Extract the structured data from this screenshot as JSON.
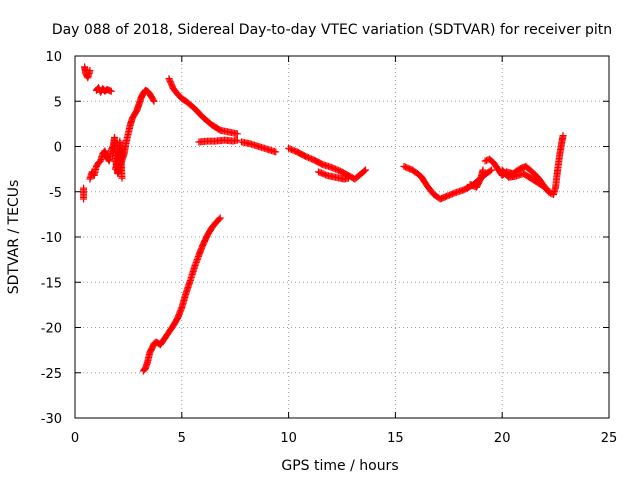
{
  "chart_data": {
    "type": "scatter",
    "title": "Day 088 of 2018, Sidereal Day-to-day VTEC variation (SDTVAR) for receiver pitn",
    "xlabel": "GPS time / hours",
    "ylabel": "SDTVAR / TECUs",
    "xlim": [
      0,
      25
    ],
    "ylim": [
      -30,
      10
    ],
    "xticks": [
      0,
      5,
      10,
      15,
      20,
      25
    ],
    "yticks": [
      10,
      5,
      0,
      -5,
      -10,
      -15,
      -20,
      -25,
      -30
    ],
    "xtick_labels": [
      "0",
      "5",
      "10",
      "15",
      "20",
      "25"
    ],
    "ytick_labels": [
      "10",
      "5",
      "0",
      "-5",
      "-10",
      "-15",
      "-20",
      "-25",
      "-30"
    ],
    "grid": true,
    "marker": "plus",
    "series": [
      {
        "name": "SDTVAR",
        "color": "#ff0000",
        "segments": [
          [
            [
              0.4,
              -5.8
            ],
            [
              0.4,
              -4.6
            ]
          ],
          [
            [
              0.45,
              8.8
            ],
            [
              0.5,
              8.1
            ],
            [
              0.6,
              7.6
            ],
            [
              0.7,
              8.4
            ]
          ],
          [
            [
              0.7,
              -3.6
            ],
            [
              0.8,
              -2.8
            ],
            [
              0.9,
              -3.2
            ],
            [
              1.0,
              -2.2
            ],
            [
              1.1,
              -1.8
            ],
            [
              1.2,
              -1.6
            ],
            [
              1.3,
              -0.8
            ],
            [
              1.4,
              -0.5
            ],
            [
              1.5,
              -1.2
            ],
            [
              1.6,
              -1.6
            ],
            [
              1.7,
              -0.4
            ],
            [
              1.8,
              0.2
            ],
            [
              1.85,
              1.0
            ],
            [
              1.9,
              -1.5
            ],
            [
              2.0,
              -3.0
            ],
            [
              2.1,
              -2.5
            ],
            [
              2.2,
              -1.5
            ],
            [
              2.3,
              -0.8
            ],
            [
              2.4,
              0.5
            ],
            [
              2.5,
              1.5
            ],
            [
              2.6,
              2.5
            ],
            [
              2.7,
              3.2
            ],
            [
              2.8,
              3.6
            ],
            [
              2.9,
              4.0
            ],
            [
              3.0,
              4.7
            ],
            [
              3.1,
              5.4
            ],
            [
              3.2,
              5.9
            ],
            [
              3.3,
              6.2
            ],
            [
              3.4,
              6.1
            ],
            [
              3.5,
              5.8
            ],
            [
              3.6,
              5.4
            ],
            [
              3.7,
              5.0
            ]
          ],
          [
            [
              1.0,
              6.2
            ],
            [
              1.1,
              6.5
            ],
            [
              1.2,
              6.0
            ],
            [
              1.3,
              6.4
            ],
            [
              1.4,
              6.1
            ],
            [
              1.5,
              6.3
            ],
            [
              1.6,
              6.2
            ],
            [
              1.7,
              6.1
            ]
          ],
          [
            [
              1.9,
              -2.5
            ],
            [
              2.0,
              -1.2
            ],
            [
              2.1,
              -0.4
            ],
            [
              2.1,
              0.6
            ],
            [
              2.2,
              -3.5
            ]
          ],
          [
            [
              3.2,
              -24.8
            ],
            [
              3.3,
              -24.5
            ],
            [
              3.4,
              -23.8
            ],
            [
              3.5,
              -22.8
            ],
            [
              3.6,
              -22.3
            ],
            [
              3.7,
              -21.8
            ],
            [
              3.8,
              -21.6
            ],
            [
              4.0,
              -21.9
            ],
            [
              4.2,
              -21.2
            ],
            [
              4.4,
              -20.5
            ],
            [
              4.6,
              -19.8
            ],
            [
              4.8,
              -19.0
            ],
            [
              5.0,
              -17.8
            ],
            [
              5.2,
              -16.2
            ],
            [
              5.4,
              -14.8
            ],
            [
              5.6,
              -13.3
            ],
            [
              5.8,
              -12.0
            ],
            [
              6.0,
              -10.8
            ],
            [
              6.2,
              -9.8
            ],
            [
              6.4,
              -9.0
            ],
            [
              6.6,
              -8.4
            ],
            [
              6.8,
              -7.9
            ]
          ],
          [
            [
              4.4,
              7.5
            ],
            [
              4.6,
              6.4
            ],
            [
              4.8,
              5.8
            ],
            [
              5.0,
              5.3
            ],
            [
              5.2,
              5.0
            ],
            [
              5.4,
              4.6
            ],
            [
              5.6,
              4.2
            ],
            [
              5.8,
              3.7
            ],
            [
              6.0,
              3.2
            ],
            [
              6.2,
              2.8
            ],
            [
              6.4,
              2.4
            ],
            [
              6.6,
              2.1
            ],
            [
              6.8,
              1.8
            ],
            [
              7.0,
              1.7
            ],
            [
              7.2,
              1.6
            ],
            [
              7.4,
              1.5
            ],
            [
              7.6,
              1.4
            ]
          ],
          [
            [
              5.8,
              0.5
            ],
            [
              6.2,
              0.6
            ],
            [
              6.6,
              0.6
            ],
            [
              7.0,
              0.7
            ],
            [
              7.4,
              0.6
            ],
            [
              7.6,
              0.7
            ]
          ],
          [
            [
              7.8,
              0.5
            ],
            [
              8.2,
              0.3
            ],
            [
              8.6,
              0.0
            ],
            [
              9.0,
              -0.3
            ],
            [
              9.4,
              -0.6
            ]
          ],
          [
            [
              10.0,
              -0.2
            ],
            [
              10.4,
              -0.6
            ],
            [
              10.8,
              -1.1
            ],
            [
              11.2,
              -1.5
            ],
            [
              11.6,
              -2.0
            ],
            [
              12.0,
              -2.3
            ],
            [
              12.4,
              -2.7
            ],
            [
              12.8,
              -3.2
            ],
            [
              13.1,
              -3.6
            ],
            [
              13.4,
              -3.0
            ],
            [
              13.6,
              -2.6
            ]
          ],
          [
            [
              11.4,
              -2.8
            ],
            [
              11.8,
              -3.2
            ],
            [
              12.2,
              -3.4
            ],
            [
              12.6,
              -3.6
            ],
            [
              12.8,
              -3.5
            ]
          ],
          [
            [
              15.4,
              -2.2
            ],
            [
              15.8,
              -2.6
            ],
            [
              16.2,
              -3.3
            ],
            [
              16.5,
              -4.4
            ],
            [
              16.8,
              -5.3
            ],
            [
              17.1,
              -5.8
            ],
            [
              17.4,
              -5.5
            ],
            [
              17.8,
              -5.1
            ],
            [
              18.2,
              -4.8
            ],
            [
              18.6,
              -4.3
            ],
            [
              18.9,
              -3.7
            ],
            [
              19.2,
              -3.1
            ],
            [
              19.5,
              -2.6
            ]
          ],
          [
            [
              18.5,
              -4.2
            ],
            [
              18.8,
              -4.5
            ],
            [
              19.0,
              -3.5
            ],
            [
              19.1,
              -2.6
            ]
          ],
          [
            [
              19.2,
              -1.6
            ],
            [
              19.4,
              -1.4
            ],
            [
              19.6,
              -1.8
            ],
            [
              19.8,
              -2.5
            ],
            [
              20.0,
              -3.2
            ],
            [
              20.2,
              -2.8
            ],
            [
              20.5,
              -3.0
            ],
            [
              20.8,
              -2.5
            ],
            [
              21.1,
              -2.2
            ],
            [
              21.4,
              -2.8
            ],
            [
              21.7,
              -3.5
            ],
            [
              22.0,
              -4.5
            ],
            [
              22.2,
              -5.1
            ],
            [
              22.4,
              -5.3
            ],
            [
              22.5,
              -4.5
            ],
            [
              22.6,
              -2.5
            ],
            [
              22.7,
              -0.8
            ],
            [
              22.8,
              0.6
            ],
            [
              22.85,
              1.2
            ]
          ],
          [
            [
              20.0,
              -2.6
            ],
            [
              20.3,
              -3.4
            ],
            [
              20.6,
              -3.3
            ],
            [
              21.0,
              -3.0
            ],
            [
              21.4,
              -3.6
            ],
            [
              21.8,
              -4.2
            ],
            [
              22.1,
              -4.7
            ]
          ]
        ]
      }
    ]
  }
}
